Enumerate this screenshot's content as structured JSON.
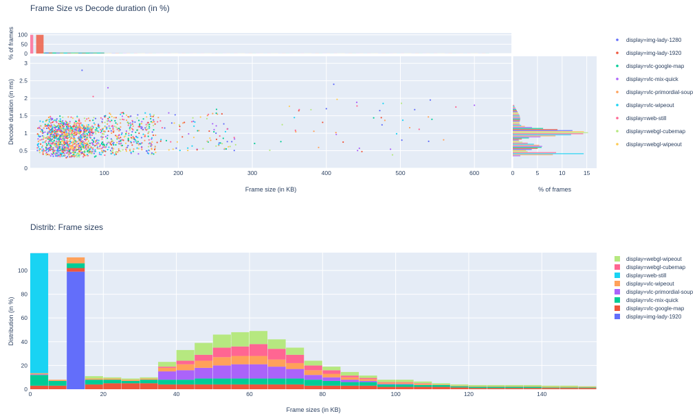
{
  "chart_data": [
    {
      "type": "scatter",
      "title": "Frame Size vs Decode duration (in %)",
      "xlabel": "Frame size (in KB)",
      "ylabel": "Decode duration (in ms)",
      "xlim": [
        0,
        650
      ],
      "ylim": [
        0,
        3.2
      ],
      "x_ticks": [
        100,
        200,
        300,
        400,
        500,
        600
      ],
      "y_ticks": [
        0,
        0.5,
        1,
        1.5,
        2,
        2.5,
        3
      ],
      "top_marginal": {
        "ylabel": "% of frames",
        "ylim": [
          0,
          110
        ],
        "y_ticks": [
          0,
          50,
          100
        ],
        "bars": [
          {
            "series": "display=img-lady-1920",
            "x0": 8,
            "x1": 18,
            "value": 100
          },
          {
            "series": "display=web-still",
            "x0": 0,
            "x1": 4,
            "value": 100
          },
          {
            "series": "display=vlc-google-map",
            "x0": 18,
            "x1": 100,
            "value": 5
          }
        ]
      },
      "right_marginal": {
        "xlabel": "% of frames",
        "xlim": [
          0,
          17
        ],
        "x_ticks": [
          0,
          5,
          10,
          15
        ]
      },
      "legend_position": "right",
      "grid": true,
      "series": [
        {
          "name": "display=img-lady-1280",
          "color": "#636efa"
        },
        {
          "name": "display=img-lady-1920",
          "color": "#ef553b"
        },
        {
          "name": "display=vlc-google-map",
          "color": "#00cc96"
        },
        {
          "name": "display=vlc-mix-quick",
          "color": "#ab63fa"
        },
        {
          "name": "display=vlc-primordial-soup",
          "color": "#ffa15a"
        },
        {
          "name": "display=vlc-wipeout",
          "color": "#19d3f3"
        },
        {
          "name": "display=web-still",
          "color": "#ff6692"
        },
        {
          "name": "display=webgl-cubemap",
          "color": "#b6e880"
        },
        {
          "name": "display=webgl-wipeout",
          "color": "#fecb52"
        }
      ]
    },
    {
      "type": "bar",
      "stacked": true,
      "title": "Distrib: Frame sizes",
      "xlabel": "Frame sizes (in KB)",
      "ylabel": "Distribution (in %)",
      "xlim": [
        0,
        155
      ],
      "ylim": [
        0,
        115
      ],
      "x_ticks": [
        0,
        20,
        40,
        60,
        80,
        100,
        120,
        140
      ],
      "y_ticks": [
        0,
        20,
        40,
        60,
        80,
        100
      ],
      "bin_width": 5,
      "legend_position": "right",
      "grid": true,
      "series": [
        {
          "name": "display=img-lady-1920",
          "color": "#636efa",
          "values": [
            0,
            0,
            99,
            0,
            0,
            0,
            0,
            0,
            0,
            0,
            0,
            0,
            0,
            0,
            0,
            0,
            0,
            0,
            0,
            0,
            0,
            0,
            0,
            0,
            0,
            0,
            0,
            0,
            0,
            0,
            0
          ]
        },
        {
          "name": "display=vlc-google-map",
          "color": "#ef553b",
          "values": [
            3,
            3,
            3,
            4,
            5,
            5,
            5,
            4,
            4,
            4,
            4,
            4,
            4,
            4,
            4,
            3,
            3,
            3,
            3,
            2,
            2,
            2,
            2,
            1.5,
            1,
            1,
            1,
            1,
            1,
            1,
            1
          ]
        },
        {
          "name": "display=vlc-mix-quick",
          "color": "#00cc96",
          "values": [
            9,
            4,
            4,
            4,
            3,
            2,
            3,
            4,
            4,
            5,
            5,
            5,
            5,
            5,
            5,
            5,
            4,
            3,
            3,
            2,
            2,
            1.5,
            1.5,
            1,
            1,
            1,
            1,
            1,
            0.5,
            0.5,
            0.5
          ]
        },
        {
          "name": "display=vlc-primordial-soup",
          "color": "#ab63fa",
          "values": [
            0.5,
            0,
            0,
            0,
            0,
            0,
            0,
            7,
            8,
            9,
            11,
            12,
            12,
            10,
            8,
            4,
            3,
            2,
            1,
            0.5,
            0.5,
            0,
            0,
            0,
            0,
            0,
            0,
            0,
            0,
            0,
            0
          ]
        },
        {
          "name": "display=vlc-wipeout",
          "color": "#ffa15a",
          "values": [
            1,
            1,
            5,
            1,
            1,
            1,
            1,
            3,
            5,
            6,
            7,
            7,
            7,
            6,
            5,
            4,
            3,
            2,
            1.5,
            1,
            1,
            1,
            0.5,
            0.5,
            0.5,
            0.5,
            0.5,
            0.5,
            0.5,
            0.5,
            0.5
          ]
        },
        {
          "name": "display=web-still",
          "color": "#19d3f3",
          "values": [
            101,
            0,
            0,
            0,
            0,
            0,
            0,
            0,
            0,
            0,
            0,
            0,
            0,
            0,
            0,
            0,
            0,
            0,
            0,
            0,
            0,
            0,
            0,
            0,
            0,
            0,
            0,
            0,
            0,
            0,
            0
          ]
        },
        {
          "name": "display=webgl-cubemap",
          "color": "#ff6692",
          "values": [
            0,
            0,
            0,
            0,
            0,
            0,
            0,
            1,
            3,
            5,
            8,
            8,
            10,
            9,
            7,
            4,
            3,
            1.5,
            1,
            0.5,
            0.5,
            0.5,
            0,
            0,
            0,
            0,
            0,
            0,
            0,
            0,
            0
          ]
        },
        {
          "name": "display=webgl-wipeout",
          "color": "#b6e880",
          "values": [
            0,
            0,
            0,
            2,
            1,
            1,
            1,
            4,
            9,
            10,
            11,
            12,
            11,
            8,
            6,
            4,
            3,
            3,
            2,
            2,
            2,
            1.5,
            1,
            1,
            1,
            1,
            1,
            1,
            1,
            1,
            0.5
          ]
        }
      ]
    }
  ]
}
